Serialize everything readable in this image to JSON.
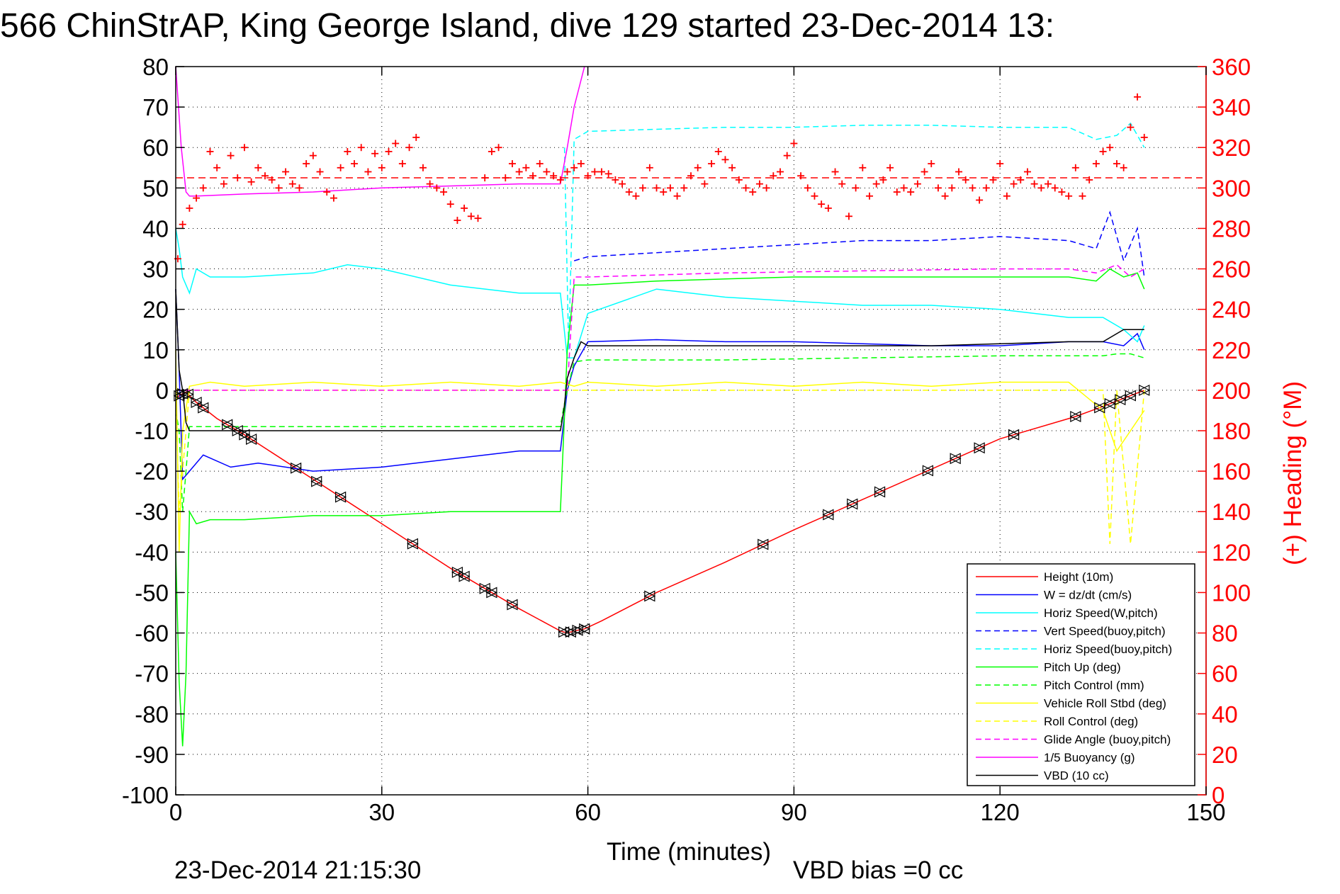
{
  "chart_data": {
    "type": "line",
    "title": "566 ChinStrAP, King George Island, dive 129 started 23-Dec-2014 13:",
    "xlabel": "Time (minutes)",
    "ylabel_right": "(+) Heading (°M)",
    "footer_left": "23-Dec-2014 21:15:30",
    "footer_right": "VBD bias =0 cc",
    "xlim": [
      0,
      150
    ],
    "ylim": [
      -100,
      80
    ],
    "ylim_right": [
      0,
      360
    ],
    "x_ticks": [
      0,
      30,
      60,
      90,
      120,
      150
    ],
    "y_ticks": [
      80,
      70,
      60,
      50,
      40,
      30,
      20,
      10,
      0,
      -10,
      -20,
      -30,
      -40,
      -50,
      -60,
      -70,
      -80,
      -90,
      -100
    ],
    "y_ticks_right": [
      360,
      340,
      320,
      300,
      280,
      260,
      240,
      220,
      200,
      180,
      160,
      140,
      120,
      100,
      80,
      60,
      40,
      20,
      0
    ],
    "grid": true,
    "legend_position": "bottom-right",
    "colors": {
      "red": "#ff0000",
      "blue": "#0000ff",
      "cyan": "#00ffff",
      "green": "#00ff00",
      "yellow": "#ffff00",
      "magenta": "#ff00ff",
      "black": "#000000"
    },
    "series": [
      {
        "name": "Height (10m)",
        "color": "#ff0000",
        "dash": false,
        "x": [
          0,
          0.8,
          1.5,
          3,
          6,
          10,
          20,
          30,
          40,
          50,
          56,
          57,
          58,
          59.5,
          62,
          70,
          80,
          90,
          100,
          110,
          120,
          131,
          135,
          138,
          141
        ],
        "y": [
          -2,
          -1,
          -0.5,
          -3,
          -7,
          -11,
          -22,
          -33,
          -44,
          -54,
          -59.5,
          -60,
          -59.5,
          -59,
          -57,
          -50,
          -42.5,
          -34.5,
          -27,
          -19.5,
          -12,
          -6.5,
          -4,
          -2,
          0
        ]
      },
      {
        "name": "W = dz/dt (cm/s)",
        "color": "#0000ff",
        "dash": false,
        "x": [
          0,
          0.5,
          1,
          2,
          4,
          8,
          12,
          20,
          30,
          40,
          50,
          56,
          57,
          58,
          60,
          70,
          80,
          90,
          100,
          110,
          120,
          130,
          135,
          138,
          140,
          141
        ],
        "y": [
          25,
          5,
          -22,
          -20,
          -16,
          -19,
          -18,
          -20,
          -19,
          -17,
          -15,
          -15,
          0,
          6,
          12,
          12.5,
          12,
          12,
          11.5,
          11,
          11,
          12,
          12,
          11,
          14,
          10
        ]
      },
      {
        "name": "Horiz Speed(W,pitch)",
        "color": "#00ffff",
        "dash": false,
        "x": [
          0,
          0.5,
          1,
          2,
          3,
          5,
          10,
          20,
          25,
          30,
          40,
          50,
          56,
          57,
          58,
          60,
          70,
          80,
          90,
          100,
          110,
          120,
          130,
          135,
          138,
          140,
          141
        ],
        "y": [
          40,
          35,
          28,
          24,
          30,
          28,
          28,
          29,
          31,
          30,
          26,
          24,
          24,
          8,
          8,
          19,
          25,
          23,
          22,
          21,
          21,
          20,
          18,
          18,
          15,
          12,
          16
        ]
      },
      {
        "name": "Vert Speed(buoy,pitch)",
        "color": "#0000ff",
        "dash": true,
        "x": [
          58,
          60,
          70,
          80,
          90,
          100,
          110,
          120,
          130,
          134,
          136,
          138,
          140,
          141
        ],
        "y": [
          32,
          33,
          34,
          35,
          36,
          37,
          37,
          38,
          37,
          35,
          44,
          32,
          40,
          28
        ]
      },
      {
        "name": "Horiz Speed(buoy,pitch)",
        "color": "#00ffff",
        "dash": true,
        "x": [
          56.6,
          57.2,
          58,
          60,
          70,
          80,
          90,
          100,
          110,
          120,
          130,
          134,
          137,
          139,
          141
        ],
        "y": [
          60,
          10,
          62,
          64,
          64.5,
          65,
          65,
          65.5,
          65.5,
          65,
          65,
          62,
          63,
          66,
          60
        ]
      },
      {
        "name": "Pitch Up (deg)",
        "color": "#00ff00",
        "dash": false,
        "x": [
          0,
          0.5,
          1,
          1.5,
          2,
          3,
          5,
          10,
          20,
          30,
          40,
          50,
          56,
          56.5,
          57,
          58,
          60,
          70,
          80,
          90,
          100,
          110,
          120,
          130,
          134,
          136,
          138,
          140,
          141
        ],
        "y": [
          -40,
          -72,
          -88,
          -70,
          -30,
          -33,
          -32,
          -32,
          -31,
          -31,
          -30,
          -30,
          -30,
          -10,
          10,
          26,
          26,
          27,
          27.5,
          28,
          28,
          28,
          28,
          28,
          27,
          30,
          28,
          29,
          25
        ]
      },
      {
        "name": "Pitch Control (mm)",
        "color": "#00ff00",
        "dash": true,
        "x": [
          0,
          0.5,
          1,
          1.5,
          2,
          5,
          10,
          20,
          30,
          40,
          50,
          56,
          56.5,
          57,
          58,
          60,
          80,
          100,
          120,
          130,
          135,
          137,
          139,
          141
        ],
        "y": [
          -5,
          -10,
          -30,
          -20,
          -9,
          -9,
          -9,
          -9,
          -9,
          -9,
          -9,
          -9,
          -4,
          0,
          7,
          7.5,
          7.5,
          8,
          8.5,
          8.5,
          8.5,
          9,
          9,
          8
        ]
      },
      {
        "name": "Vehicle Roll Stbd (deg)",
        "color": "#ffff00",
        "dash": false,
        "x": [
          0,
          0.5,
          1,
          2,
          5,
          10,
          20,
          30,
          40,
          50,
          56,
          58,
          60,
          70,
          80,
          90,
          100,
          110,
          120,
          130,
          135,
          137,
          139,
          141
        ],
        "y": [
          10,
          -40,
          -10,
          1,
          2,
          1,
          2,
          1,
          2,
          1,
          2,
          1,
          2,
          1,
          2,
          1,
          2,
          1,
          2,
          2,
          -5,
          -15,
          -10,
          -5
        ]
      },
      {
        "name": "Roll Control (deg)",
        "color": "#ffff00",
        "dash": true,
        "x": [
          0,
          0.5,
          1,
          2,
          5,
          10,
          20,
          30,
          40,
          50,
          56,
          58,
          60,
          70,
          80,
          90,
          100,
          110,
          120,
          130,
          135,
          136,
          137,
          139,
          141
        ],
        "y": [
          0,
          -30,
          -20,
          0,
          0,
          0,
          0,
          0,
          0,
          0,
          0,
          0,
          0,
          0,
          0,
          0,
          0,
          0,
          0,
          0,
          0,
          -38,
          0,
          -38,
          0
        ]
      },
      {
        "name": "Glide Angle (buoy,pitch)",
        "color": "#ff00ff",
        "dash": true,
        "x": [
          0,
          10,
          20,
          30,
          40,
          50,
          57,
          58,
          60,
          80,
          100,
          120,
          130,
          134,
          137,
          139,
          141
        ],
        "y": [
          0,
          0,
          0,
          0,
          0,
          0,
          0,
          28,
          28,
          29,
          29.5,
          30,
          30,
          29,
          31,
          28,
          30
        ]
      },
      {
        "name": "1/5 Buoyancy (g)",
        "color": "#ff00ff",
        "dash": false,
        "x": [
          0,
          0.8,
          1.5,
          2,
          3,
          10,
          20,
          30,
          40,
          50,
          56,
          57,
          58,
          59.5
        ],
        "y": [
          80,
          60,
          49,
          48,
          48,
          48.5,
          49,
          50,
          50.5,
          51,
          51,
          60,
          70,
          80
        ]
      },
      {
        "name": "VBD (10 cc)",
        "color": "#000000",
        "dash": false,
        "x": [
          0,
          0.5,
          1,
          1.5,
          2,
          10,
          20,
          30,
          40,
          50,
          56,
          56.5,
          57,
          58,
          59,
          60,
          70,
          80,
          90,
          100,
          110,
          120,
          130,
          135,
          138,
          140,
          141
        ],
        "y": [
          25,
          5,
          0,
          -8,
          -10,
          -10,
          -10,
          -10,
          -10,
          -10,
          -10,
          -5,
          3,
          8,
          12,
          11,
          11,
          11,
          11,
          11,
          11,
          11.5,
          12,
          12,
          15,
          15,
          15
        ]
      }
    ],
    "heading_series": {
      "name": "(+) Heading",
      "color": "#ff0000",
      "marker": "+",
      "axis": "right",
      "mean_line": 305,
      "x": [
        0.3,
        1,
        2,
        3,
        4,
        5,
        6,
        7,
        8,
        9,
        10,
        11,
        12,
        13,
        14,
        15,
        16,
        17,
        18,
        19,
        20,
        21,
        22,
        23,
        24,
        25,
        26,
        27,
        28,
        29,
        30,
        31,
        32,
        33,
        34,
        35,
        36,
        37,
        38,
        39,
        40,
        41,
        42,
        43,
        44,
        45,
        46,
        47,
        48,
        49,
        50,
        51,
        52,
        53,
        54,
        55,
        56,
        57,
        58,
        59,
        60,
        61,
        62,
        63,
        64,
        65,
        66,
        67,
        68,
        69,
        70,
        71,
        72,
        73,
        74,
        75,
        76,
        77,
        78,
        79,
        80,
        81,
        82,
        83,
        84,
        85,
        86,
        87,
        88,
        89,
        90,
        91,
        92,
        93,
        94,
        95,
        96,
        97,
        98,
        99,
        100,
        101,
        102,
        103,
        104,
        105,
        106,
        107,
        108,
        109,
        110,
        111,
        112,
        113,
        114,
        115,
        116,
        117,
        118,
        119,
        120,
        121,
        122,
        123,
        124,
        125,
        126,
        127,
        128,
        129,
        130,
        131,
        132,
        133,
        134,
        135,
        136,
        137,
        138,
        139,
        140,
        141
      ],
      "y": [
        265,
        282,
        290,
        295,
        300,
        318,
        310,
        302,
        316,
        305,
        320,
        303,
        310,
        306,
        304,
        300,
        308,
        302,
        300,
        312,
        316,
        308,
        298,
        295,
        310,
        318,
        312,
        320,
        308,
        317,
        310,
        318,
        322,
        312,
        320,
        325,
        310,
        302,
        300,
        298,
        292,
        284,
        290,
        286,
        285,
        305,
        318,
        320,
        305,
        312,
        308,
        310,
        306,
        312,
        308,
        306,
        304,
        308,
        310,
        312,
        306,
        308,
        308,
        307,
        304,
        302,
        298,
        296,
        300,
        310,
        300,
        298,
        300,
        296,
        300,
        306,
        310,
        302,
        312,
        318,
        314,
        310,
        304,
        300,
        298,
        302,
        300,
        306,
        308,
        316,
        322,
        306,
        300,
        296,
        292,
        290,
        308,
        302,
        286,
        300,
        310,
        296,
        302,
        304,
        310,
        298,
        300,
        298,
        302,
        308,
        312,
        300,
        296,
        300,
        308,
        304,
        300,
        294,
        300,
        304,
        312,
        296,
        302,
        304,
        308,
        302,
        300,
        302,
        300,
        298,
        296,
        310,
        296,
        304,
        312,
        318,
        320,
        312,
        310,
        330,
        345,
        325
      ]
    },
    "markers": {
      "series": "Height (10m)",
      "color": "#000000",
      "x": [
        0.5,
        1,
        1.8,
        3,
        4,
        7.5,
        9,
        10,
        11,
        17.5,
        20.5,
        24,
        34.5,
        41,
        42,
        45,
        46,
        49,
        56.5,
        57.5,
        58.5,
        59.5,
        69,
        85.5,
        95,
        98.5,
        102.5,
        109.5,
        113.5,
        117,
        122,
        131,
        134.5,
        136,
        137.5,
        139,
        141
      ]
    }
  }
}
